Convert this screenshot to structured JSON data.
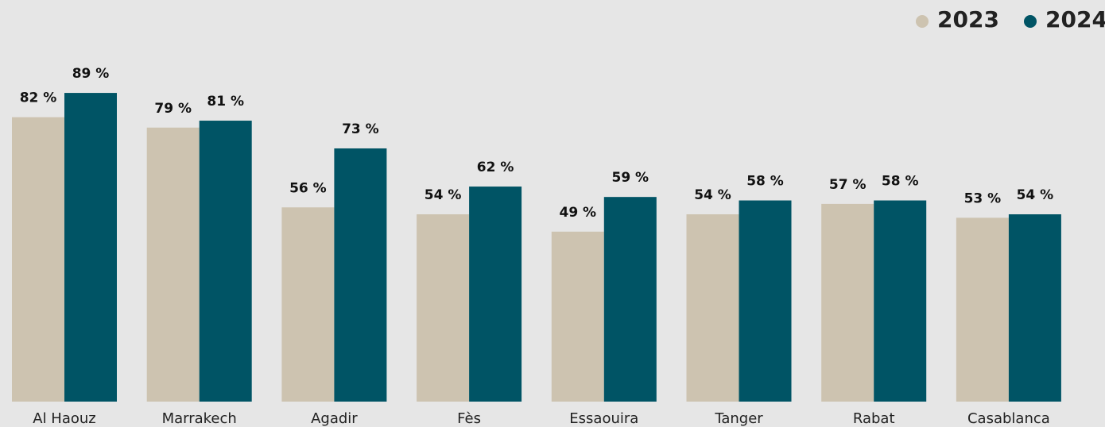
{
  "chart_data": {
    "type": "bar",
    "categories": [
      "Al Haouz",
      "Marrakech",
      "Agadir",
      "Fès",
      "Essaouira",
      "Tanger",
      "Rabat",
      "Casablanca"
    ],
    "series": [
      {
        "name": "2023",
        "color": "#cdc3b0",
        "values": [
          82,
          79,
          56,
          54,
          49,
          54,
          57,
          53
        ],
        "value_labels": [
          "82 %",
          "79 %",
          "56 %",
          "54 %",
          "49 %",
          "54 %",
          "57 %",
          "53 %"
        ]
      },
      {
        "name": "2024",
        "color": "#005465",
        "values": [
          89,
          81,
          73,
          62,
          59,
          58,
          58,
          54
        ],
        "value_labels": [
          "89 %",
          "81 %",
          "73 %",
          "62 %",
          "59 %",
          "58 %",
          "58 %",
          "54 %"
        ]
      }
    ],
    "ylim": [
      0,
      100
    ],
    "legend": "top-right"
  }
}
